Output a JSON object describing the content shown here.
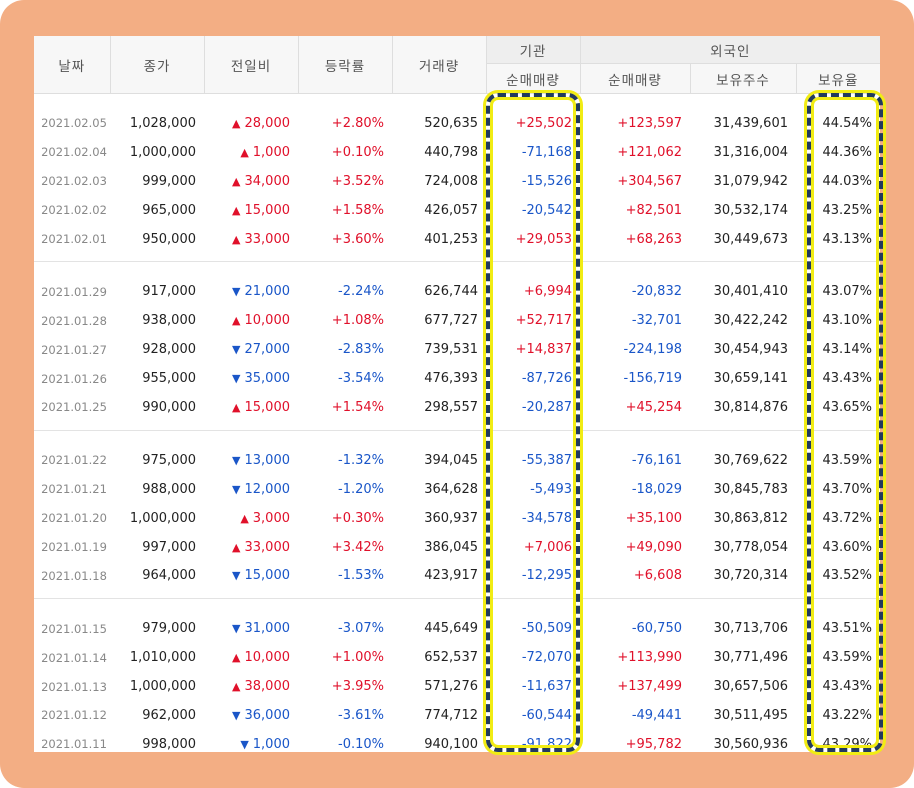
{
  "headers": {
    "date": "날짜",
    "close": "종가",
    "change": "전일비",
    "rate": "등락률",
    "volume": "거래량",
    "institution": "기관",
    "inst_net": "순매매량",
    "foreign": "외국인",
    "foreign_net": "순매매량",
    "foreign_holding": "보유주수",
    "foreign_ratio": "보유율"
  },
  "weeks": [
    [
      {
        "date": "2021.02.05",
        "close": "1,028,000",
        "dir": "up",
        "change": "28,000",
        "rate": "+2.80%",
        "volume": "520,635",
        "inst": "+25,502",
        "foreign_net": "+123,597",
        "holding": "31,439,601",
        "ratio": "44.54%"
      },
      {
        "date": "2021.02.04",
        "close": "1,000,000",
        "dir": "up",
        "change": "1,000",
        "rate": "+0.10%",
        "volume": "440,798",
        "inst": "-71,168",
        "foreign_net": "+121,062",
        "holding": "31,316,004",
        "ratio": "44.36%"
      },
      {
        "date": "2021.02.03",
        "close": "999,000",
        "dir": "up",
        "change": "34,000",
        "rate": "+3.52%",
        "volume": "724,008",
        "inst": "-15,526",
        "foreign_net": "+304,567",
        "holding": "31,079,942",
        "ratio": "44.03%"
      },
      {
        "date": "2021.02.02",
        "close": "965,000",
        "dir": "up",
        "change": "15,000",
        "rate": "+1.58%",
        "volume": "426,057",
        "inst": "-20,542",
        "foreign_net": "+82,501",
        "holding": "30,532,174",
        "ratio": "43.25%"
      },
      {
        "date": "2021.02.01",
        "close": "950,000",
        "dir": "up",
        "change": "33,000",
        "rate": "+3.60%",
        "volume": "401,253",
        "inst": "+29,053",
        "foreign_net": "+68,263",
        "holding": "30,449,673",
        "ratio": "43.13%"
      }
    ],
    [
      {
        "date": "2021.01.29",
        "close": "917,000",
        "dir": "down",
        "change": "21,000",
        "rate": "-2.24%",
        "volume": "626,744",
        "inst": "+6,994",
        "foreign_net": "-20,832",
        "holding": "30,401,410",
        "ratio": "43.07%"
      },
      {
        "date": "2021.01.28",
        "close": "938,000",
        "dir": "up",
        "change": "10,000",
        "rate": "+1.08%",
        "volume": "677,727",
        "inst": "+52,717",
        "foreign_net": "-32,701",
        "holding": "30,422,242",
        "ratio": "43.10%"
      },
      {
        "date": "2021.01.27",
        "close": "928,000",
        "dir": "down",
        "change": "27,000",
        "rate": "-2.83%",
        "volume": "739,531",
        "inst": "+14,837",
        "foreign_net": "-224,198",
        "holding": "30,454,943",
        "ratio": "43.14%"
      },
      {
        "date": "2021.01.26",
        "close": "955,000",
        "dir": "down",
        "change": "35,000",
        "rate": "-3.54%",
        "volume": "476,393",
        "inst": "-87,726",
        "foreign_net": "-156,719",
        "holding": "30,659,141",
        "ratio": "43.43%"
      },
      {
        "date": "2021.01.25",
        "close": "990,000",
        "dir": "up",
        "change": "15,000",
        "rate": "+1.54%",
        "volume": "298,557",
        "inst": "-20,287",
        "foreign_net": "+45,254",
        "holding": "30,814,876",
        "ratio": "43.65%"
      }
    ],
    [
      {
        "date": "2021.01.22",
        "close": "975,000",
        "dir": "down",
        "change": "13,000",
        "rate": "-1.32%",
        "volume": "394,045",
        "inst": "-55,387",
        "foreign_net": "-76,161",
        "holding": "30,769,622",
        "ratio": "43.59%"
      },
      {
        "date": "2021.01.21",
        "close": "988,000",
        "dir": "down",
        "change": "12,000",
        "rate": "-1.20%",
        "volume": "364,628",
        "inst": "-5,493",
        "foreign_net": "-18,029",
        "holding": "30,845,783",
        "ratio": "43.70%"
      },
      {
        "date": "2021.01.20",
        "close": "1,000,000",
        "dir": "up",
        "change": "3,000",
        "rate": "+0.30%",
        "volume": "360,937",
        "inst": "-34,578",
        "foreign_net": "+35,100",
        "holding": "30,863,812",
        "ratio": "43.72%"
      },
      {
        "date": "2021.01.19",
        "close": "997,000",
        "dir": "up",
        "change": "33,000",
        "rate": "+3.42%",
        "volume": "386,045",
        "inst": "+7,006",
        "foreign_net": "+49,090",
        "holding": "30,778,054",
        "ratio": "43.60%"
      },
      {
        "date": "2021.01.18",
        "close": "964,000",
        "dir": "down",
        "change": "15,000",
        "rate": "-1.53%",
        "volume": "423,917",
        "inst": "-12,295",
        "foreign_net": "+6,608",
        "holding": "30,720,314",
        "ratio": "43.52%"
      }
    ],
    [
      {
        "date": "2021.01.15",
        "close": "979,000",
        "dir": "down",
        "change": "31,000",
        "rate": "-3.07%",
        "volume": "445,649",
        "inst": "-50,509",
        "foreign_net": "-60,750",
        "holding": "30,713,706",
        "ratio": "43.51%"
      },
      {
        "date": "2021.01.14",
        "close": "1,010,000",
        "dir": "up",
        "change": "10,000",
        "rate": "+1.00%",
        "volume": "652,537",
        "inst": "-72,070",
        "foreign_net": "+113,990",
        "holding": "30,771,496",
        "ratio": "43.59%"
      },
      {
        "date": "2021.01.13",
        "close": "1,000,000",
        "dir": "up",
        "change": "38,000",
        "rate": "+3.95%",
        "volume": "571,276",
        "inst": "-11,637",
        "foreign_net": "+137,499",
        "holding": "30,657,506",
        "ratio": "43.43%"
      },
      {
        "date": "2021.01.12",
        "close": "962,000",
        "dir": "down",
        "change": "36,000",
        "rate": "-3.61%",
        "volume": "774,712",
        "inst": "-60,544",
        "foreign_net": "-49,441",
        "holding": "30,511,495",
        "ratio": "43.22%"
      },
      {
        "date": "2021.01.11",
        "close": "998,000",
        "dir": "down",
        "change": "1,000",
        "rate": "-0.10%",
        "volume": "940,100",
        "inst": "-91,822",
        "foreign_net": "+95,782",
        "holding": "30,560,936",
        "ratio": "43.29%"
      }
    ]
  ],
  "colors": {
    "up": "#e0102a",
    "down": "#1a56c8",
    "frame": "#f3ae84",
    "highlight_border": "#213a5e",
    "highlight_glow": "#f1ec14"
  },
  "icons": {
    "up": "triangle-up-icon",
    "down": "triangle-down-icon"
  }
}
